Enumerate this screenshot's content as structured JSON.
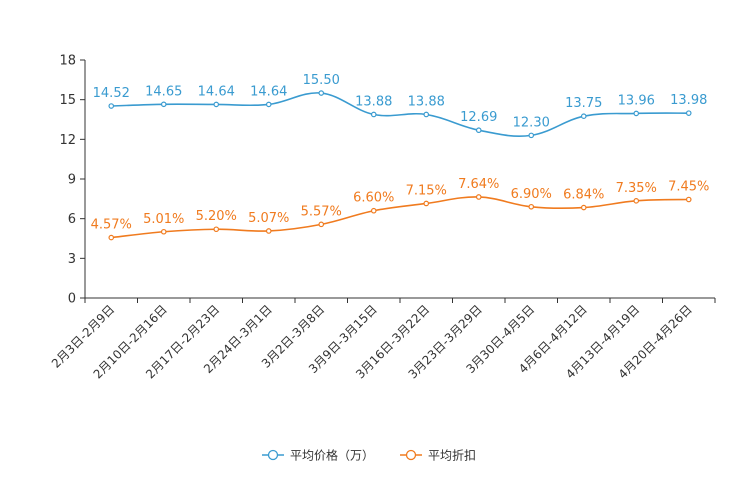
{
  "chart_data": {
    "type": "line",
    "title": "",
    "xlabel": "",
    "ylabel": "",
    "ylim": [
      0,
      18
    ],
    "yticks": [
      "0",
      "3",
      "6",
      "9",
      "12",
      "15",
      "18"
    ],
    "categories": [
      "2月3日-2月9日",
      "2月10日-2月16日",
      "2月17日-2月23日",
      "2月24日-3月1日",
      "3月2日-3月8日",
      "3月9日-3月15日",
      "3月16日-3月22日",
      "3月23日-3月29日",
      "3月30日-4月5日",
      "4月6日-4月12日",
      "4月13日-4月19日",
      "4月20日-4月26日"
    ],
    "series": [
      {
        "name": "平均价格（万）",
        "color": "#3a9bd0",
        "values": [
          14.52,
          14.65,
          14.64,
          14.64,
          15.5,
          13.88,
          13.88,
          12.69,
          12.3,
          13.75,
          13.96,
          13.98
        ],
        "labels": [
          "14.52",
          "14.65",
          "14.64",
          "14.64",
          "15.50",
          "13.88",
          "13.88",
          "12.69",
          "12.30",
          "13.75",
          "13.96",
          "13.98"
        ]
      },
      {
        "name": "平均折扣",
        "color": "#f07b1f",
        "values": [
          4.57,
          5.01,
          5.2,
          5.07,
          5.57,
          6.6,
          7.15,
          7.64,
          6.9,
          6.84,
          7.35,
          7.45
        ],
        "labels": [
          "4.57%",
          "5.01%",
          "5.20%",
          "5.07%",
          "5.57%",
          "6.60%",
          "7.15%",
          "7.64%",
          "6.90%",
          "6.84%",
          "7.35%",
          "7.45%"
        ]
      }
    ],
    "legend_position": "bottom-center"
  }
}
